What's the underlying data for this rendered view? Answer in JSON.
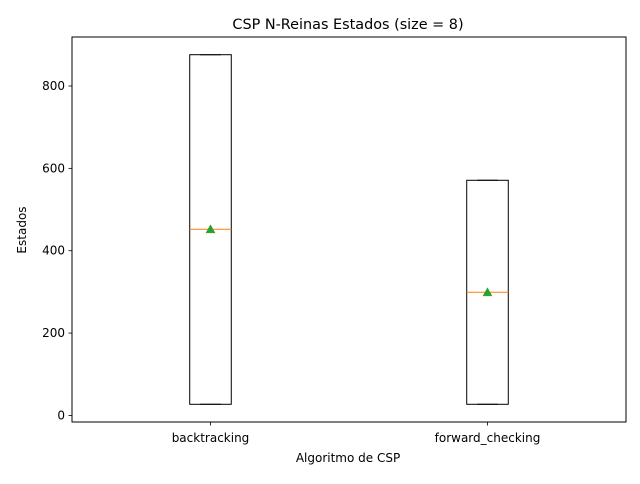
{
  "chart_data": {
    "type": "box",
    "title": "CSP N-Reinas Estados (size = 8)",
    "xlabel": "Algoritmo de CSP",
    "ylabel": "Estados",
    "categories": [
      "backtracking",
      "forward_checking"
    ],
    "boxes": [
      {
        "label": "backtracking",
        "min": 27,
        "q1": 27,
        "median": 452,
        "q3": 876,
        "max": 876,
        "mean": 452
      },
      {
        "label": "forward_checking",
        "min": 27,
        "q1": 27,
        "median": 299,
        "q3": 571,
        "max": 571,
        "mean": 299
      }
    ],
    "ylim": [
      -16,
      919
    ],
    "yticks": [
      0,
      200,
      400,
      600,
      800
    ],
    "grid": false,
    "colors": {
      "box": "#000000",
      "median": "#ff7f0e",
      "mean_marker": "#2ca02c"
    },
    "mean_marker_shape": "triangle"
  }
}
